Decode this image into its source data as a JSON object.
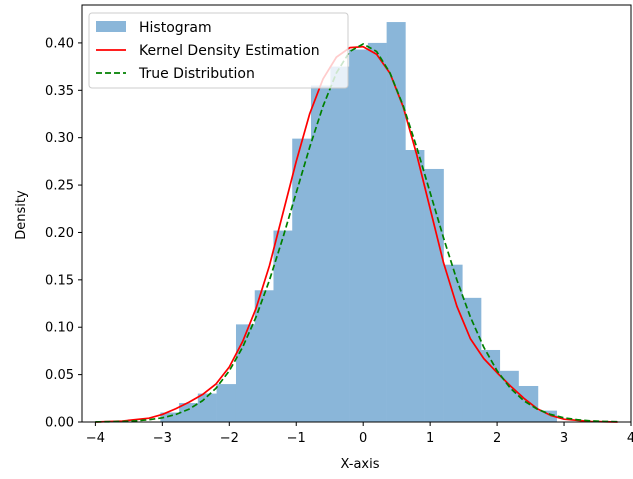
{
  "chart_data": {
    "type": "histogram",
    "xlabel": "X-axis",
    "ylabel": "Density",
    "xlim": [
      -4.2,
      4.0
    ],
    "ylim": [
      0,
      0.44
    ],
    "xticks": [
      -4,
      -3,
      -2,
      -1,
      0,
      1,
      2,
      3,
      4
    ],
    "xtick_labels": [
      "−4",
      "−3",
      "−2",
      "−1",
      "0",
      "1",
      "2",
      "3",
      "4"
    ],
    "yticks": [
      0.0,
      0.05,
      0.1,
      0.15,
      0.2,
      0.25,
      0.3,
      0.35,
      0.4
    ],
    "ytick_labels": [
      "0.00",
      "0.05",
      "0.10",
      "0.15",
      "0.20",
      "0.25",
      "0.30",
      "0.35",
      "0.40"
    ],
    "legend": {
      "placement": "upper-left"
    },
    "histogram": {
      "name": "Histogram",
      "color": "#8ab6d9",
      "bins": [
        {
          "x0": -3.03,
          "x1": -2.75,
          "value": 0.01
        },
        {
          "x0": -2.75,
          "x1": -2.47,
          "value": 0.02
        },
        {
          "x0": -2.47,
          "x1": -2.19,
          "value": 0.03
        },
        {
          "x0": -2.19,
          "x1": -1.9,
          "value": 0.04
        },
        {
          "x0": -1.9,
          "x1": -1.62,
          "value": 0.103
        },
        {
          "x0": -1.62,
          "x1": -1.34,
          "value": 0.139
        },
        {
          "x0": -1.34,
          "x1": -1.06,
          "value": 0.202
        },
        {
          "x0": -1.06,
          "x1": -0.78,
          "value": 0.299
        },
        {
          "x0": -0.78,
          "x1": -0.49,
          "value": 0.355
        },
        {
          "x0": -0.49,
          "x1": -0.21,
          "value": 0.375
        },
        {
          "x0": -0.21,
          "x1": 0.07,
          "value": 0.393
        },
        {
          "x0": 0.07,
          "x1": 0.35,
          "value": 0.4
        },
        {
          "x0": 0.35,
          "x1": 0.63,
          "value": 0.422
        },
        {
          "x0": 0.63,
          "x1": 0.91,
          "value": 0.287
        },
        {
          "x0": 0.91,
          "x1": 1.2,
          "value": 0.267
        },
        {
          "x0": 1.2,
          "x1": 1.48,
          "value": 0.166
        },
        {
          "x0": 1.48,
          "x1": 1.76,
          "value": 0.131
        },
        {
          "x0": 1.76,
          "x1": 2.04,
          "value": 0.076
        },
        {
          "x0": 2.04,
          "x1": 2.32,
          "value": 0.054
        },
        {
          "x0": 2.32,
          "x1": 2.61,
          "value": 0.038
        },
        {
          "x0": 2.61,
          "x1": 2.89,
          "value": 0.012
        }
      ]
    },
    "series": [
      {
        "name": "Kernel Density Estimation",
        "color": "#ff0000",
        "style": "solid",
        "x": [
          -4.0,
          -3.6,
          -3.2,
          -3.0,
          -2.8,
          -2.6,
          -2.4,
          -2.2,
          -2.0,
          -1.8,
          -1.6,
          -1.4,
          -1.2,
          -1.0,
          -0.8,
          -0.6,
          -0.4,
          -0.2,
          0.0,
          0.2,
          0.4,
          0.6,
          0.8,
          1.0,
          1.2,
          1.4,
          1.6,
          1.8,
          2.0,
          2.2,
          2.4,
          2.6,
          2.8,
          3.0,
          3.4,
          3.8
        ],
        "y": [
          0.0,
          0.001,
          0.004,
          0.008,
          0.014,
          0.021,
          0.029,
          0.04,
          0.058,
          0.085,
          0.12,
          0.165,
          0.22,
          0.275,
          0.325,
          0.362,
          0.385,
          0.395,
          0.396,
          0.388,
          0.368,
          0.332,
          0.282,
          0.225,
          0.168,
          0.122,
          0.088,
          0.067,
          0.052,
          0.038,
          0.025,
          0.014,
          0.007,
          0.003,
          0.0005,
          0.0
        ]
      },
      {
        "name": "True Distribution",
        "color": "#008000",
        "style": "dashed",
        "x": [
          -4.0,
          -3.8,
          -3.6,
          -3.4,
          -3.2,
          -3.0,
          -2.8,
          -2.6,
          -2.4,
          -2.2,
          -2.0,
          -1.8,
          -1.6,
          -1.4,
          -1.2,
          -1.0,
          -0.8,
          -0.6,
          -0.4,
          -0.2,
          0.0,
          0.2,
          0.4,
          0.6,
          0.8,
          1.0,
          1.2,
          1.4,
          1.6,
          1.8,
          2.0,
          2.2,
          2.4,
          2.6,
          2.8,
          3.0,
          3.2,
          3.4,
          3.6,
          3.8
        ],
        "y": [
          0.0001,
          0.0003,
          0.0006,
          0.0012,
          0.0024,
          0.0044,
          0.0079,
          0.0136,
          0.0224,
          0.0355,
          0.054,
          0.079,
          0.1109,
          0.1497,
          0.1942,
          0.242,
          0.2897,
          0.3332,
          0.3683,
          0.391,
          0.3989,
          0.391,
          0.3683,
          0.3332,
          0.2897,
          0.242,
          0.1942,
          0.1497,
          0.1109,
          0.079,
          0.054,
          0.0355,
          0.0224,
          0.0136,
          0.0079,
          0.0044,
          0.0024,
          0.0012,
          0.0006,
          0.0003
        ]
      }
    ]
  }
}
